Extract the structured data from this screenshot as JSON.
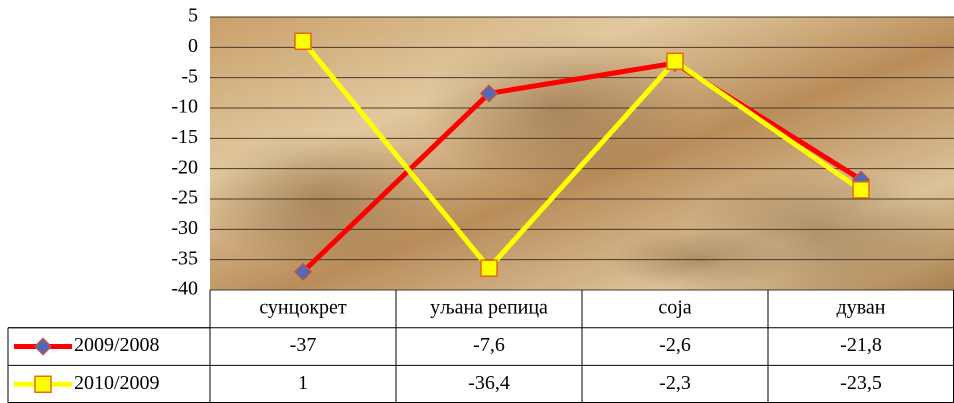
{
  "chart_data": {
    "type": "line",
    "categories": [
      "сунцокрет",
      "уљана репица",
      "соја",
      "дуван"
    ],
    "series": [
      {
        "name": "2009/2008",
        "color": "#ff0000",
        "marker_color": "#4f6ab8",
        "marker": "diamond",
        "values": [
          -37,
          -7.6,
          -2.6,
          -21.8
        ],
        "value_labels": [
          "-37",
          "-7,6",
          "-2,6",
          "-21,8"
        ]
      },
      {
        "name": "2010/2009",
        "color": "#ffff00",
        "marker_color": "#ffff00",
        "marker": "square",
        "values": [
          1,
          -36.4,
          -2.3,
          -23.5
        ],
        "value_labels": [
          "1",
          "-36,4",
          "-2,3",
          "-23,5"
        ]
      }
    ],
    "ylim": [
      -40,
      5
    ],
    "yticks": [
      5,
      0,
      -5,
      -10,
      -15,
      -20,
      -25,
      -30,
      -35,
      -40
    ],
    "grid": true
  }
}
